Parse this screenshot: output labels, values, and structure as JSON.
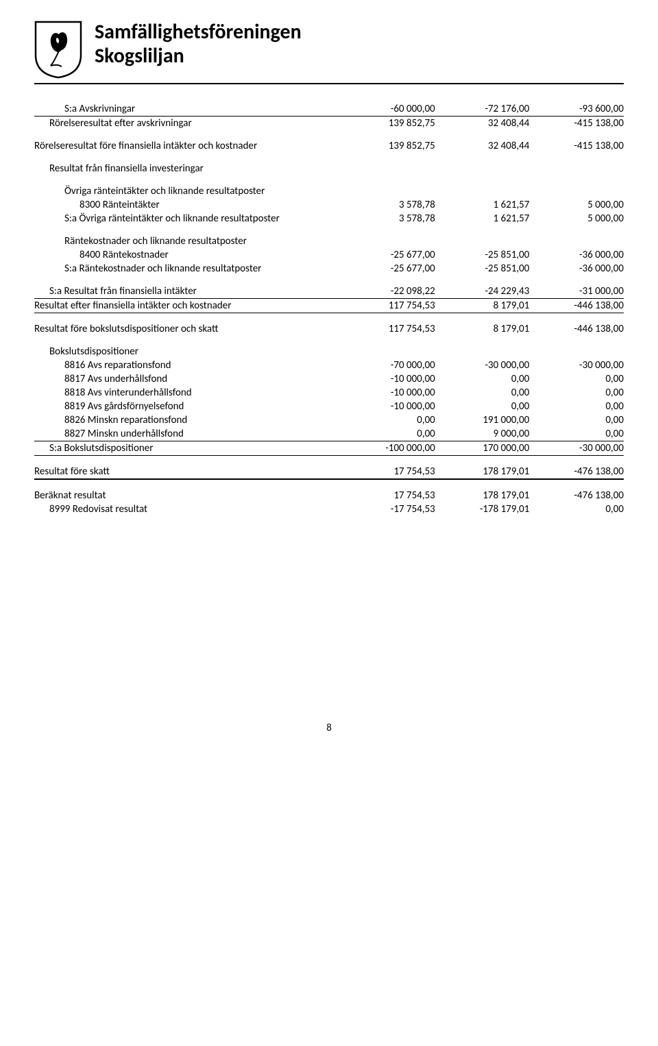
{
  "header": {
    "line1": "Samfällighetsföreningen",
    "line2": "Skogsliljan"
  },
  "pageNumber": "8",
  "rows": [
    {
      "cls": "i2",
      "l": "S:a Avskrivningar",
      "a": "-60 000,00",
      "b": "-72 176,00",
      "c": "-93 600,00"
    },
    {
      "hr": true
    },
    {
      "cls": "i1",
      "l": "Rörelseresultat efter avskrivningar",
      "a": "139 852,75",
      "b": "32 408,44",
      "c": "-415 138,00"
    },
    {
      "sp": true,
      "l": "Rörelseresultat före finansiella intäkter och kostnader",
      "a": "139 852,75",
      "b": "32 408,44",
      "c": "-415 138,00"
    },
    {
      "sp": true,
      "cls": "i1",
      "l": "Resultat från finansiella investeringar"
    },
    {
      "sp": true,
      "cls": "i2",
      "l": "Övriga ränteintäkter och liknande resultatposter"
    },
    {
      "cls": "i3",
      "l": "8300 Ränteintäkter",
      "a": "3 578,78",
      "b": "1 621,57",
      "c": "5 000,00"
    },
    {
      "cls": "i2",
      "l": "S:a Övriga ränteintäkter och liknande resultatposter",
      "a": "3 578,78",
      "b": "1 621,57",
      "c": "5 000,00"
    },
    {
      "sp": true,
      "cls": "i2",
      "l": "Räntekostnader och liknande resultatposter"
    },
    {
      "cls": "i3",
      "l": "8400 Räntekostnader",
      "a": "-25 677,00",
      "b": "-25 851,00",
      "c": "-36 000,00"
    },
    {
      "cls": "i2",
      "l": "S:a Räntekostnader och liknande resultatposter",
      "a": "-25 677,00",
      "b": "-25 851,00",
      "c": "-36 000,00"
    },
    {
      "sp": true,
      "cls": "i1",
      "l": "S:a Resultat från finansiella intäkter",
      "a": "-22 098,22",
      "b": "-24 229,43",
      "c": "-31 000,00"
    },
    {
      "hr": true
    },
    {
      "l": "Resultat efter finansiella intäkter och kostnader",
      "a": "117 754,53",
      "b": "8 179,01",
      "c": "-446 138,00"
    },
    {
      "hr": true
    },
    {
      "sp": true,
      "l": "Resultat före bokslutsdispositioner och skatt",
      "a": "117 754,53",
      "b": "8 179,01",
      "c": "-446 138,00"
    },
    {
      "sp": true,
      "cls": "i1",
      "l": "Bokslutsdispositioner"
    },
    {
      "cls": "i2",
      "l": "8816 Avs reparationsfond",
      "a": "-70 000,00",
      "b": "-30 000,00",
      "c": "-30 000,00"
    },
    {
      "cls": "i2",
      "l": "8817 Avs underhållsfond",
      "a": "-10 000,00",
      "b": "0,00",
      "c": "0,00"
    },
    {
      "cls": "i2",
      "l": "8818 Avs vinterunderhållsfond",
      "a": "-10 000,00",
      "b": "0,00",
      "c": "0,00"
    },
    {
      "cls": "i2",
      "l": "8819 Avs gårdsförnyelsefond",
      "a": "-10 000,00",
      "b": "0,00",
      "c": "0,00"
    },
    {
      "cls": "i2",
      "l": "8826 Minskn reparationsfond",
      "a": "0,00",
      "b": "191 000,00",
      "c": "0,00"
    },
    {
      "cls": "i2",
      "l": "8827 Minskn underhållsfond",
      "a": "0,00",
      "b": "9 000,00",
      "c": "0,00"
    },
    {
      "hr": true
    },
    {
      "cls": "i1",
      "l": "S:a Bokslutsdispositioner",
      "a": "-100 000,00",
      "b": "170 000,00",
      "c": "-30 000,00"
    },
    {
      "hr": true
    },
    {
      "sp": true,
      "l": "Resultat före skatt",
      "a": "17 754,53",
      "b": "178 179,01",
      "c": "-476 138,00"
    },
    {
      "hr2": true,
      "sp": true
    },
    {
      "sp": true,
      "l": "Beräknat resultat",
      "a": "17 754,53",
      "b": "178 179,01",
      "c": "-476 138,00"
    },
    {
      "cls": "i1",
      "l": "8999 Redovisat resultat",
      "a": "-17 754,53",
      "b": "-178 179,01",
      "c": "0,00"
    }
  ]
}
